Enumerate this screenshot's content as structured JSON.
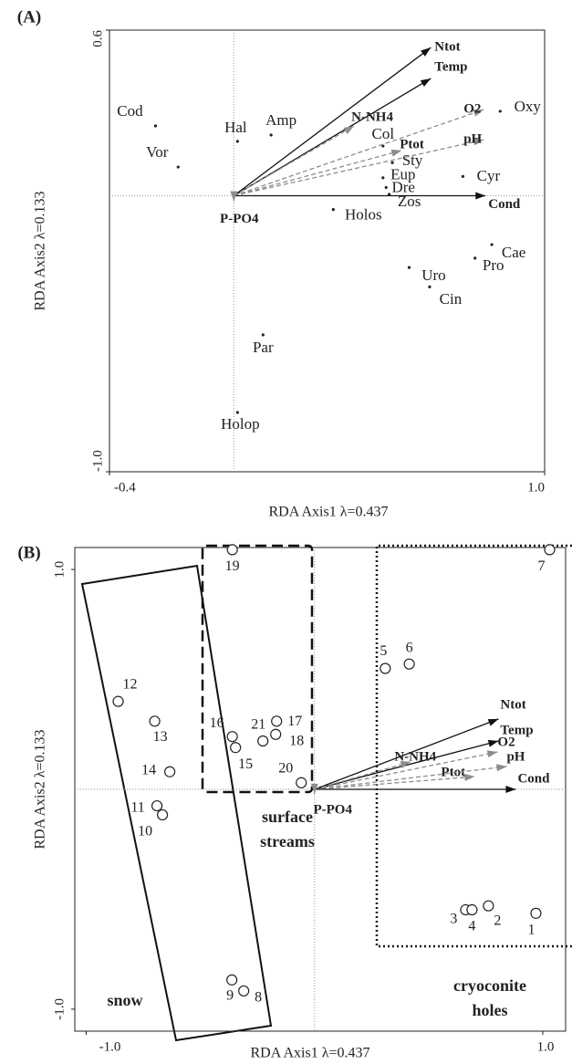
{
  "chart_data": [
    {
      "type": "biplot",
      "panel": "(A)",
      "xlabel": "RDA Axis1 λ=0.437",
      "ylabel": "RDA Axis2 λ=0.133",
      "xlim": [
        -0.4,
        1.0
      ],
      "ylim": [
        -1.0,
        0.6
      ],
      "xticks": [
        -0.4,
        {
          "value": 1,
          "label": "1.0"
        }
      ],
      "yticks": [
        0.6,
        {
          "value": -1,
          "label": "-1.0"
        }
      ],
      "zero_lines": true,
      "marker": "dot",
      "points": {
        "labels": [
          "Cod",
          "Vor",
          "Hal",
          "Amp",
          "Col",
          "Sty",
          "Eup",
          "Dre",
          "Zos",
          "Holos",
          "Cyr",
          "Oxy",
          "Cae",
          "Pro",
          "Uro",
          "Cin",
          "Par",
          "Holop"
        ],
        "x": [
          -0.252,
          -0.179,
          0.012,
          0.12,
          0.48,
          0.51,
          0.48,
          0.49,
          0.5,
          0.32,
          0.737,
          0.857,
          0.83,
          0.776,
          0.564,
          0.63,
          0.094,
          0.012
        ],
        "y": [
          0.253,
          0.104,
          0.197,
          0.22,
          0.18,
          0.12,
          0.065,
          0.03,
          0.005,
          -0.05,
          0.07,
          0.306,
          -0.177,
          -0.226,
          -0.26,
          -0.33,
          -0.504,
          -0.785
        ]
      },
      "vectors": {
        "names": [
          "Ntot",
          "Temp",
          "N-NH4",
          "O2",
          "Ptot",
          "pH",
          "Cond",
          "P-PO4"
        ],
        "x": [
          0.634,
          0.634,
          0.387,
          0.804,
          0.54,
          0.804,
          0.81,
          0
        ],
        "y": [
          0.537,
          0.425,
          0.253,
          0.312,
          0.164,
          0.203,
          0,
          -0.02
        ],
        "colors": [
          "#111111",
          "#111111",
          "#8c8c8c",
          "#8c8c8c",
          "#8c8c8c",
          "#8c8c8c",
          "#111111",
          "#8c8c8c"
        ],
        "styles": [
          "solid",
          "solid",
          "dashed",
          "dashed",
          "dashed",
          "dashed",
          "solid",
          "solid"
        ]
      }
    },
    {
      "type": "biplot",
      "panel": "(B)",
      "xlabel": "RDA Axis1 λ=0.437",
      "ylabel": "RDA Axis2 λ=0.133",
      "xlim": [
        -1.05,
        1.1
      ],
      "ylim": [
        -1.1,
        1.1
      ],
      "xticks": [
        {
          "value": -1,
          "label": "-1.0"
        },
        {
          "value": 1,
          "label": "1.0"
        }
      ],
      "yticks": [
        {
          "value": 1,
          "label": "1.0"
        },
        {
          "value": -1,
          "label": "-1.0"
        }
      ],
      "zero_lines": true,
      "marker": "circle",
      "points": {
        "labels": [
          "1",
          "2",
          "3",
          "4",
          "5",
          "6",
          "7",
          "8",
          "9",
          "10",
          "11",
          "12",
          "13",
          "14",
          "15",
          "16",
          "17",
          "18",
          "19",
          "20",
          "21"
        ],
        "x": [
          0.97,
          0.762,
          0.662,
          0.69,
          0.31,
          0.415,
          1.03,
          -0.31,
          -0.362,
          -0.666,
          -0.69,
          -0.86,
          -0.7,
          -0.634,
          -0.346,
          -0.36,
          -0.166,
          -0.17,
          -0.36,
          -0.058,
          -0.226
        ],
        "y": [
          -0.564,
          -0.53,
          -0.548,
          -0.548,
          0.55,
          0.57,
          1.09,
          -0.917,
          -0.867,
          -0.116,
          -0.075,
          0.4,
          0.31,
          0.08,
          0.19,
          0.24,
          0.31,
          0.25,
          1.09,
          0.03,
          0.22
        ]
      },
      "vectors": {
        "names": [
          "Ntot",
          "Temp",
          "N-NH4",
          "O2",
          "Ptot",
          "pH",
          "Cond",
          "P-PO4"
        ],
        "x": [
          0.806,
          0.806,
          0.422,
          0.802,
          0.702,
          0.842,
          0.882,
          0
        ],
        "y": [
          0.32,
          0.22,
          0.125,
          0.17,
          0.058,
          0.104,
          0,
          -0.02
        ],
        "colors": [
          "#111111",
          "#111111",
          "#8c8c8c",
          "#8c8c8c",
          "#8c8c8c",
          "#8c8c8c",
          "#111111",
          "#8c8c8c"
        ],
        "styles": [
          "solid",
          "solid",
          "dashed",
          "dashed",
          "dashed",
          "dashed",
          "solid",
          "solid"
        ]
      },
      "annotations": [
        {
          "lines": [
            "surface",
            "streams"
          ]
        },
        {
          "lines": [
            "snow"
          ]
        },
        {
          "lines": [
            "cryoconite",
            "holes"
          ]
        }
      ]
    }
  ]
}
